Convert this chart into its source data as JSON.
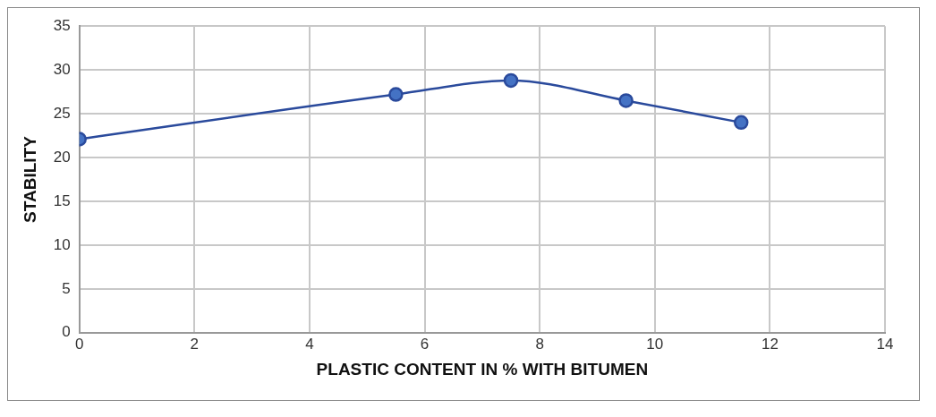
{
  "chart_data": {
    "type": "line",
    "xlabel": "PLASTIC CONTENT IN % WITH BITUMEN",
    "ylabel": "STABILITY",
    "series": [
      {
        "color": "#2a4a9c",
        "x": [
          0,
          5.5,
          7.5,
          9.5,
          11.5
        ],
        "values": [
          22.1,
          27.2,
          28.8,
          26.5,
          24.0
        ]
      }
    ],
    "xlim": [
      0,
      14
    ],
    "xticks": [
      0,
      2,
      4,
      6,
      8,
      10,
      12,
      14
    ],
    "ylim": [
      0,
      35
    ],
    "yticks": [
      0,
      5,
      10,
      15,
      20,
      25,
      30,
      35
    ],
    "grid": true,
    "legend": false,
    "marker": "circle",
    "line_style": "solid"
  }
}
